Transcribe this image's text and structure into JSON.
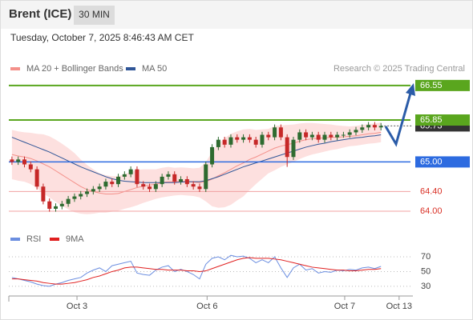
{
  "header": {
    "symbol": "Brent (ICE)",
    "timeframe": "30 MIN",
    "timestamp": "Tuesday, October 7, 2025 8:46:43 AM CET"
  },
  "chart_data": [
    {
      "type": "candlestick",
      "legend": [
        {
          "name": "MA 20 + Bollinger Bands",
          "color": "#f4908a"
        },
        {
          "name": "MA 50",
          "color": "#2f5597"
        }
      ],
      "credit": "Research © 2025 Trading Central",
      "up_color": "#2e6b30",
      "down_color": "#c62828",
      "band_color": "#fde0df",
      "open": [
        65.05,
        65.0,
        65.05,
        64.95,
        64.85,
        64.5,
        64.2,
        64.05,
        64.1,
        64.15,
        64.25,
        64.3,
        64.35,
        64.4,
        64.45,
        64.5,
        64.6,
        64.55,
        64.7,
        64.75,
        64.85,
        64.55,
        64.5,
        64.45,
        64.55,
        64.7,
        64.75,
        64.6,
        64.65,
        64.55,
        64.5,
        64.45,
        64.95,
        65.3,
        65.45,
        65.35,
        65.5,
        65.45,
        65.5,
        65.45,
        65.35,
        65.55,
        65.5,
        65.7,
        65.5,
        65.1,
        65.45,
        65.6,
        65.5,
        65.55,
        65.45,
        65.55,
        65.5,
        65.55,
        65.55,
        65.6,
        65.65,
        65.7,
        65.75,
        65.7
      ],
      "high": [
        65.11,
        65.11,
        65.11,
        65.01,
        64.91,
        64.56,
        64.26,
        64.16,
        64.21,
        64.31,
        64.36,
        64.41,
        64.46,
        64.51,
        64.56,
        64.66,
        64.66,
        64.76,
        64.81,
        64.91,
        64.91,
        64.61,
        64.56,
        64.61,
        64.76,
        64.81,
        64.81,
        64.71,
        64.71,
        64.61,
        64.56,
        65.01,
        65.36,
        65.51,
        65.51,
        65.56,
        65.56,
        65.56,
        65.56,
        65.51,
        65.61,
        65.61,
        65.76,
        65.76,
        65.56,
        65.51,
        65.66,
        65.66,
        65.61,
        65.61,
        65.61,
        65.61,
        65.61,
        65.61,
        65.66,
        65.71,
        65.76,
        65.81,
        65.81,
        65.79
      ],
      "low": [
        64.94,
        64.94,
        64.89,
        64.79,
        64.44,
        64.14,
        63.99,
        63.99,
        64.04,
        64.09,
        64.19,
        64.24,
        64.29,
        64.34,
        64.39,
        64.44,
        64.49,
        64.49,
        64.64,
        64.69,
        64.49,
        64.44,
        64.39,
        64.39,
        64.49,
        64.64,
        64.54,
        64.54,
        64.49,
        64.44,
        64.39,
        64.39,
        64.89,
        65.24,
        65.29,
        65.29,
        65.39,
        65.39,
        65.39,
        65.29,
        65.29,
        65.44,
        65.44,
        65.44,
        64.9,
        65.04,
        65.39,
        65.44,
        65.44,
        65.39,
        65.39,
        65.44,
        65.44,
        65.49,
        65.49,
        65.54,
        65.59,
        65.64,
        65.64,
        65.64
      ],
      "close": [
        65.0,
        65.05,
        64.95,
        64.85,
        64.5,
        64.2,
        64.05,
        64.1,
        64.15,
        64.25,
        64.3,
        64.35,
        64.4,
        64.45,
        64.5,
        64.6,
        64.55,
        64.7,
        64.75,
        64.85,
        64.55,
        64.5,
        64.45,
        64.55,
        64.7,
        64.75,
        64.6,
        64.65,
        64.55,
        64.5,
        64.45,
        64.95,
        65.3,
        65.45,
        65.35,
        65.5,
        65.45,
        65.5,
        65.45,
        65.35,
        65.55,
        65.5,
        65.7,
        65.5,
        65.1,
        65.45,
        65.6,
        65.5,
        65.55,
        65.45,
        65.55,
        65.5,
        65.55,
        65.55,
        65.6,
        65.65,
        65.7,
        65.75,
        65.7,
        65.73
      ],
      "ma20": [
        65.15,
        65.12,
        65.1,
        65.07,
        65.02,
        64.96,
        64.9,
        64.82,
        64.74,
        64.66,
        64.58,
        64.5,
        64.44,
        64.4,
        64.37,
        64.35,
        64.35,
        64.36,
        64.4,
        64.44,
        64.48,
        64.51,
        64.53,
        64.55,
        64.58,
        64.6,
        64.6,
        64.61,
        64.6,
        64.59,
        64.58,
        64.6,
        64.65,
        64.72,
        64.78,
        64.85,
        64.92,
        64.98,
        65.05,
        65.1,
        65.16,
        65.22,
        65.28,
        65.32,
        65.35,
        65.38,
        65.42,
        65.45,
        65.47,
        65.48,
        65.49,
        65.5,
        65.5,
        65.51,
        65.52,
        65.53,
        65.55,
        65.57,
        65.58,
        65.6
      ],
      "upper": [
        65.65,
        65.62,
        65.6,
        65.59,
        65.57,
        65.56,
        65.52,
        65.45,
        65.37,
        65.28,
        65.18,
        65.05,
        64.94,
        64.85,
        64.77,
        64.73,
        64.71,
        64.71,
        64.75,
        64.8,
        64.84,
        64.85,
        64.85,
        64.85,
        64.88,
        64.9,
        64.88,
        64.89,
        64.88,
        64.87,
        64.88,
        65.0,
        65.2,
        65.37,
        65.48,
        65.57,
        65.62,
        65.66,
        65.67,
        65.65,
        65.66,
        65.67,
        65.73,
        65.74,
        65.75,
        65.76,
        65.78,
        65.79,
        65.79,
        65.78,
        65.77,
        65.76,
        65.74,
        65.73,
        65.72,
        65.73,
        65.75,
        65.77,
        65.78,
        65.8
      ],
      "lower": [
        64.65,
        64.62,
        64.6,
        64.55,
        64.47,
        64.36,
        64.28,
        64.19,
        64.11,
        64.04,
        63.98,
        63.95,
        63.94,
        63.95,
        63.97,
        63.97,
        63.99,
        64.01,
        64.05,
        64.08,
        64.12,
        64.17,
        64.21,
        64.25,
        64.28,
        64.3,
        64.32,
        64.33,
        64.32,
        64.31,
        64.28,
        64.2,
        64.1,
        64.07,
        64.08,
        64.13,
        64.22,
        64.3,
        64.43,
        64.55,
        64.66,
        64.77,
        64.83,
        64.9,
        64.95,
        65.0,
        65.06,
        65.11,
        65.15,
        65.18,
        65.21,
        65.24,
        65.26,
        65.29,
        65.32,
        65.33,
        65.35,
        65.37,
        65.38,
        65.4
      ],
      "ma50": [
        65.5,
        65.45,
        65.4,
        65.35,
        65.3,
        65.25,
        65.2,
        65.14,
        65.08,
        65.02,
        64.96,
        64.9,
        64.85,
        64.8,
        64.75,
        64.7,
        64.66,
        64.63,
        64.61,
        64.6,
        64.59,
        64.58,
        64.58,
        64.58,
        64.58,
        64.58,
        64.58,
        64.59,
        64.6,
        64.6,
        64.6,
        64.62,
        64.66,
        64.7,
        64.75,
        64.8,
        64.85,
        64.9,
        64.94,
        64.98,
        65.02,
        65.06,
        65.1,
        65.14,
        65.18,
        65.22,
        65.26,
        65.3,
        65.33,
        65.36,
        65.38,
        65.41,
        65.43,
        65.45,
        65.47,
        65.49,
        65.5,
        65.52,
        65.53,
        65.55
      ],
      "xlim": [
        -0.5,
        64.1
      ],
      "xticks": [
        {
          "value": 10.4,
          "label": "Oct 3"
        },
        {
          "value": 31.2,
          "label": "Oct 6"
        },
        {
          "value": 53.2,
          "label": "Oct 7"
        },
        {
          "value": 61.9,
          "label": "Oct 13"
        }
      ],
      "ylim": [
        63.66,
        67.7
      ],
      "levels": {
        "values": [
          66.55,
          65.85,
          65.0,
          64.4,
          64.0
        ],
        "value_labels": [
          "66.55",
          "65.85",
          "65.00",
          "64.40",
          "64.00"
        ],
        "colors": [
          "#5aa61e",
          "#5aa61e",
          "#2d6be0",
          "#f0a0a0",
          "#f0a0a0"
        ],
        "label_colors": [
          "#5aa61e",
          "#5aa61e",
          "#2d6be0",
          "#d93025",
          "#d93025"
        ],
        "boxed": [
          true,
          true,
          true,
          false,
          false
        ]
      },
      "last_price": 65.73,
      "last_color": "#333333"
    },
    {
      "type": "line",
      "series": [
        {
          "name": "RSI",
          "color": "#6b8ee0",
          "values": [
            42,
            40,
            38,
            36,
            33,
            31,
            30,
            33,
            35,
            38,
            40,
            42,
            48,
            52,
            55,
            50,
            58,
            60,
            62,
            64,
            48,
            46,
            45,
            52,
            56,
            58,
            50,
            53,
            50,
            46,
            40,
            60,
            68,
            70,
            66,
            72,
            70,
            71,
            68,
            62,
            66,
            62,
            70,
            55,
            42,
            55,
            60,
            52,
            54,
            48,
            50,
            49,
            52,
            51,
            53,
            52,
            55,
            56,
            54,
            57
          ]
        },
        {
          "name": "9MA",
          "color": "#e02020",
          "values": [
            40,
            40,
            39,
            38,
            37,
            35,
            34,
            33,
            33,
            34,
            35,
            37,
            39,
            42,
            44,
            47,
            50,
            52,
            55,
            56,
            56,
            55,
            54,
            53,
            53,
            52,
            52,
            52,
            51,
            51,
            50,
            51,
            54,
            57,
            60,
            63,
            66,
            68,
            69,
            68,
            68,
            68,
            67,
            66,
            64,
            62,
            60,
            58,
            56,
            55,
            54,
            53,
            52,
            52,
            51,
            51,
            52,
            53,
            53,
            54
          ]
        }
      ],
      "ylim": [
        19,
        82
      ],
      "yticks": [
        30,
        50,
        70
      ]
    }
  ]
}
